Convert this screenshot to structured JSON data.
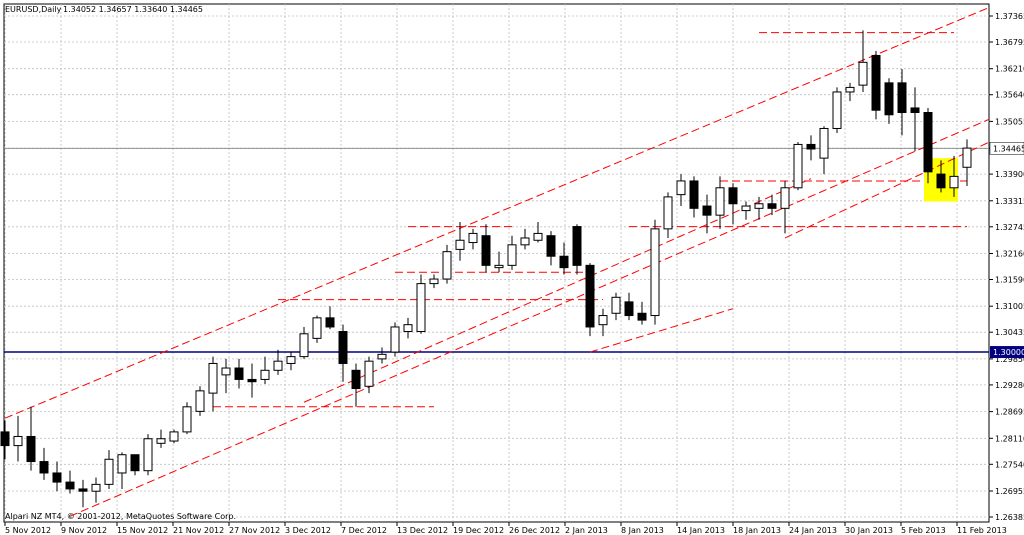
{
  "header": {
    "symbol": "EURUSD,Daily",
    "ohlc": "1.34052 1.34657 1.33640 1.34465"
  },
  "footer": {
    "copyright": "Alpari NZ MT4, © 2001-2012, MetaQuotes Software Corp."
  },
  "chart_data": {
    "type": "candlestick",
    "y_ticks": [
      "1.37365",
      "1.36795",
      "1.36210",
      "1.35640",
      "1.35055",
      "1.34465",
      "1.33900",
      "1.33315",
      "1.32745",
      "1.32160",
      "1.31590",
      "1.31005",
      "1.30435",
      "1.29850",
      "1.29280",
      "1.28695",
      "1.28110",
      "1.27540",
      "1.26955",
      "1.26385"
    ],
    "x_labels": [
      "5 Nov 2012",
      "9 Nov 2012",
      "15 Nov 2012",
      "21 Nov 2012",
      "27 Nov 2012",
      "3 Dec 2012",
      "7 Dec 2012",
      "13 Dec 2012",
      "19 Dec 2012",
      "26 Dec 2012",
      "2 Jan 2013",
      "8 Jan 2013",
      "14 Jan 2013",
      "18 Jan 2013",
      "24 Jan 2013",
      "30 Jan 2013",
      "5 Feb 2013",
      "11 Feb 2013"
    ],
    "ylim": [
      1.2625,
      1.3755
    ],
    "current_price": "1.34465",
    "level_price": "1.30000",
    "colors": {
      "grid": "#c0c0c0",
      "trendline": "#ff0000",
      "level_line": "#000080",
      "highlight": "#ffff00",
      "bull_fill": "#ffffff",
      "bear_fill": "#000000"
    },
    "candles": [
      {
        "o": 1.2825,
        "h": 1.285,
        "l": 1.2765,
        "c": 1.2795
      },
      {
        "o": 1.2795,
        "h": 1.286,
        "l": 1.276,
        "c": 1.2815
      },
      {
        "o": 1.2815,
        "h": 1.288,
        "l": 1.274,
        "c": 1.276
      },
      {
        "o": 1.276,
        "h": 1.279,
        "l": 1.272,
        "c": 1.2735
      },
      {
        "o": 1.2735,
        "h": 1.276,
        "l": 1.2695,
        "c": 1.2715
      },
      {
        "o": 1.2715,
        "h": 1.274,
        "l": 1.269,
        "c": 1.27
      },
      {
        "o": 1.27,
        "h": 1.272,
        "l": 1.266,
        "c": 1.2695
      },
      {
        "o": 1.2695,
        "h": 1.2725,
        "l": 1.267,
        "c": 1.271
      },
      {
        "o": 1.271,
        "h": 1.2785,
        "l": 1.27,
        "c": 1.2765
      },
      {
        "o": 1.2735,
        "h": 1.278,
        "l": 1.27,
        "c": 1.2775
      },
      {
        "o": 1.2775,
        "h": 1.277,
        "l": 1.273,
        "c": 1.274
      },
      {
        "o": 1.274,
        "h": 1.282,
        "l": 1.273,
        "c": 1.281
      },
      {
        "o": 1.28,
        "h": 1.283,
        "l": 1.279,
        "c": 1.281
      },
      {
        "o": 1.2805,
        "h": 1.283,
        "l": 1.28,
        "c": 1.2825
      },
      {
        "o": 1.2825,
        "h": 1.289,
        "l": 1.282,
        "c": 1.288
      },
      {
        "o": 1.287,
        "h": 1.2925,
        "l": 1.286,
        "c": 1.2915
      },
      {
        "o": 1.291,
        "h": 1.299,
        "l": 1.287,
        "c": 1.2975
      },
      {
        "o": 1.295,
        "h": 1.2985,
        "l": 1.291,
        "c": 1.2965
      },
      {
        "o": 1.2965,
        "h": 1.2985,
        "l": 1.292,
        "c": 1.294
      },
      {
        "o": 1.294,
        "h": 1.2975,
        "l": 1.29,
        "c": 1.2935
      },
      {
        "o": 1.294,
        "h": 1.299,
        "l": 1.293,
        "c": 1.296
      },
      {
        "o": 1.296,
        "h": 1.3005,
        "l": 1.295,
        "c": 1.298
      },
      {
        "o": 1.2975,
        "h": 1.3,
        "l": 1.296,
        "c": 1.299
      },
      {
        "o": 1.299,
        "h": 1.3055,
        "l": 1.2985,
        "c": 1.304
      },
      {
        "o": 1.303,
        "h": 1.308,
        "l": 1.302,
        "c": 1.3075
      },
      {
        "o": 1.3075,
        "h": 1.31,
        "l": 1.305,
        "c": 1.3055
      },
      {
        "o": 1.3045,
        "h": 1.306,
        "l": 1.2935,
        "c": 1.2975
      },
      {
        "o": 1.296,
        "h": 1.2975,
        "l": 1.288,
        "c": 1.292
      },
      {
        "o": 1.2925,
        "h": 1.299,
        "l": 1.291,
        "c": 1.298
      },
      {
        "o": 1.2985,
        "h": 1.301,
        "l": 1.2975,
        "c": 1.2995
      },
      {
        "o": 1.3,
        "h": 1.3065,
        "l": 1.299,
        "c": 1.3055
      },
      {
        "o": 1.3045,
        "h": 1.3075,
        "l": 1.303,
        "c": 1.306
      },
      {
        "o": 1.3045,
        "h": 1.317,
        "l": 1.304,
        "c": 1.315
      },
      {
        "o": 1.315,
        "h": 1.317,
        "l": 1.314,
        "c": 1.316
      },
      {
        "o": 1.316,
        "h": 1.3235,
        "l": 1.315,
        "c": 1.322
      },
      {
        "o": 1.3225,
        "h": 1.3285,
        "l": 1.32,
        "c": 1.3245
      },
      {
        "o": 1.324,
        "h": 1.327,
        "l": 1.3225,
        "c": 1.326
      },
      {
        "o": 1.3255,
        "h": 1.328,
        "l": 1.3175,
        "c": 1.319
      },
      {
        "o": 1.3185,
        "h": 1.322,
        "l": 1.3175,
        "c": 1.319
      },
      {
        "o": 1.319,
        "h": 1.3255,
        "l": 1.318,
        "c": 1.3235
      },
      {
        "o": 1.3235,
        "h": 1.327,
        "l": 1.3225,
        "c": 1.325
      },
      {
        "o": 1.3245,
        "h": 1.3285,
        "l": 1.324,
        "c": 1.326
      },
      {
        "o": 1.3255,
        "h": 1.3265,
        "l": 1.319,
        "c": 1.321
      },
      {
        "o": 1.321,
        "h": 1.324,
        "l": 1.317,
        "c": 1.3185
      },
      {
        "o": 1.3275,
        "h": 1.328,
        "l": 1.317,
        "c": 1.319
      },
      {
        "o": 1.319,
        "h": 1.3195,
        "l": 1.3035,
        "c": 1.3055
      },
      {
        "o": 1.306,
        "h": 1.3095,
        "l": 1.3035,
        "c": 1.308
      },
      {
        "o": 1.3085,
        "h": 1.313,
        "l": 1.307,
        "c": 1.312
      },
      {
        "o": 1.311,
        "h": 1.313,
        "l": 1.307,
        "c": 1.308
      },
      {
        "o": 1.3085,
        "h": 1.311,
        "l": 1.306,
        "c": 1.307
      },
      {
        "o": 1.308,
        "h": 1.329,
        "l": 1.306,
        "c": 1.327
      },
      {
        "o": 1.327,
        "h": 1.335,
        "l": 1.325,
        "c": 1.334
      },
      {
        "o": 1.3345,
        "h": 1.339,
        "l": 1.332,
        "c": 1.3375
      },
      {
        "o": 1.3375,
        "h": 1.3385,
        "l": 1.3295,
        "c": 1.3315
      },
      {
        "o": 1.332,
        "h": 1.3345,
        "l": 1.326,
        "c": 1.33
      },
      {
        "o": 1.33,
        "h": 1.3385,
        "l": 1.327,
        "c": 1.336
      },
      {
        "o": 1.336,
        "h": 1.337,
        "l": 1.328,
        "c": 1.3325
      },
      {
        "o": 1.331,
        "h": 1.333,
        "l": 1.329,
        "c": 1.332
      },
      {
        "o": 1.3315,
        "h": 1.334,
        "l": 1.329,
        "c": 1.3325
      },
      {
        "o": 1.3325,
        "h": 1.3345,
        "l": 1.33,
        "c": 1.3315
      },
      {
        "o": 1.3315,
        "h": 1.3375,
        "l": 1.326,
        "c": 1.336
      },
      {
        "o": 1.336,
        "h": 1.346,
        "l": 1.3355,
        "c": 1.3455
      },
      {
        "o": 1.3455,
        "h": 1.3475,
        "l": 1.342,
        "c": 1.3445
      },
      {
        "o": 1.3425,
        "h": 1.3495,
        "l": 1.339,
        "c": 1.349
      },
      {
        "o": 1.349,
        "h": 1.358,
        "l": 1.348,
        "c": 1.357
      },
      {
        "o": 1.357,
        "h": 1.359,
        "l": 1.355,
        "c": 1.358
      },
      {
        "o": 1.3585,
        "h": 1.3705,
        "l": 1.357,
        "c": 1.3635
      },
      {
        "o": 1.365,
        "h": 1.366,
        "l": 1.351,
        "c": 1.353
      },
      {
        "o": 1.359,
        "h": 1.36,
        "l": 1.35,
        "c": 1.352
      },
      {
        "o": 1.359,
        "h": 1.362,
        "l": 1.3475,
        "c": 1.3525
      },
      {
        "o": 1.3535,
        "h": 1.358,
        "l": 1.344,
        "c": 1.3525
      },
      {
        "o": 1.3525,
        "h": 1.3535,
        "l": 1.337,
        "c": 1.3395
      },
      {
        "o": 1.339,
        "h": 1.342,
        "l": 1.335,
        "c": 1.336
      },
      {
        "o": 1.336,
        "h": 1.343,
        "l": 1.334,
        "c": 1.3385
      },
      {
        "o": 1.3405,
        "h": 1.3466,
        "l": 1.3364,
        "c": 1.3447
      }
    ],
    "lines": [
      {
        "from": [
          0,
          1.2855
        ],
        "to": [
          73,
          1.3755
        ],
        "dash": true
      },
      {
        "from": [
          5,
          1.2635
        ],
        "to": [
          74,
          1.35
        ],
        "dash": true
      },
      {
        "from": [
          61,
          1.3505
        ],
        "to": [
          74,
          1.3505
        ],
        "dash": true
      },
      {
        "from": [
          44,
          1.3
        ],
        "to": [
          58,
          1.309
        ],
        "dash": true
      },
      {
        "from": [
          34,
          1.287
        ],
        "to": [
          47,
          1.304
        ],
        "dash": true
      }
    ]
  }
}
